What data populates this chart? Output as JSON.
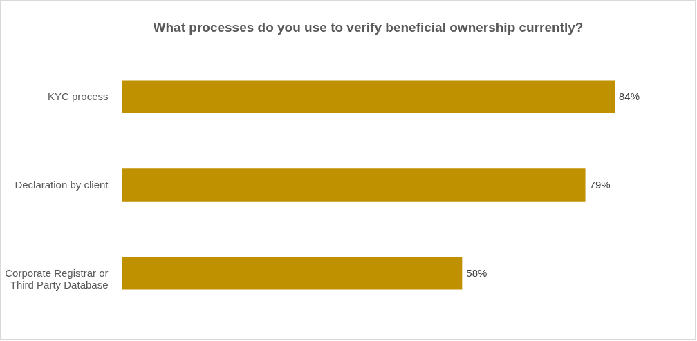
{
  "chart_data": {
    "type": "bar",
    "orientation": "horizontal",
    "title": "What processes do you use to verify beneficial ownership currently?",
    "categories": [
      "KYC process",
      "Declaration by client",
      "Corporate Registrar or Third Party Database"
    ],
    "values": [
      84,
      79,
      58
    ],
    "value_labels": [
      "84%",
      "79%",
      "58%"
    ],
    "color": "#bf9000"
  }
}
